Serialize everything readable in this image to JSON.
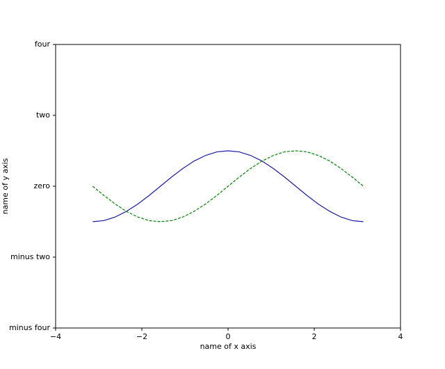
{
  "chart_data": {
    "type": "line",
    "xlabel": "name of x axis",
    "ylabel": "name of y axis",
    "x": [
      -3.14,
      -2.88,
      -2.62,
      -2.36,
      -2.09,
      -1.83,
      -1.57,
      -1.31,
      -1.05,
      -0.79,
      -0.52,
      -0.26,
      0,
      0.26,
      0.52,
      0.79,
      1.05,
      1.31,
      1.57,
      1.83,
      2.09,
      2.36,
      2.62,
      2.88,
      3.14
    ],
    "series": [
      {
        "color": "#1a1aa0",
        "linestyle": "solid",
        "values": [
          -1,
          -0.97,
          -0.87,
          -0.71,
          -0.5,
          -0.26,
          0,
          0.26,
          0.5,
          0.71,
          0.87,
          0.97,
          1,
          0.97,
          0.87,
          0.71,
          0.5,
          0.26,
          0,
          -0.26,
          -0.5,
          -0.71,
          -0.87,
          -0.97,
          -1
        ]
      },
      {
        "color": "#008000",
        "linestyle": "dashed",
        "values": [
          0,
          -0.26,
          -0.5,
          -0.71,
          -0.87,
          -0.97,
          -1,
          -0.97,
          -0.87,
          -0.71,
          -0.5,
          -0.26,
          0,
          0.26,
          0.5,
          0.71,
          0.87,
          0.97,
          1,
          0.97,
          0.87,
          0.71,
          0.5,
          0.26,
          0
        ]
      }
    ],
    "xlim": [
      -4,
      4
    ],
    "xticks": [
      {
        "value": -4,
        "label": "−4"
      },
      {
        "value": -2,
        "label": "−2"
      },
      0,
      2,
      4
    ],
    "ylim": [
      -4,
      4
    ],
    "yticks": [
      {
        "value": -4,
        "label": "minus four"
      },
      {
        "value": -2,
        "label": "minus two"
      },
      {
        "value": 0,
        "label": "zero"
      },
      {
        "value": 2,
        "label": "two"
      },
      {
        "value": 4,
        "label": "four"
      }
    ],
    "grid": false
  }
}
